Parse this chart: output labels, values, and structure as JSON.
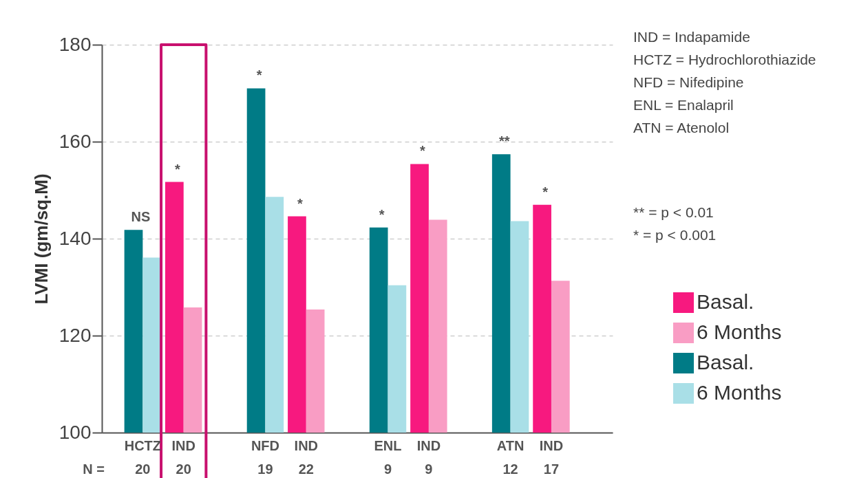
{
  "chart_data": {
    "type": "bar",
    "ylabel": "LVMI (gm/sq.M)",
    "categories": [
      "HCTZ",
      "IND",
      "NFD",
      "IND",
      "ENL",
      "IND",
      "ATN",
      "IND"
    ],
    "series": [
      {
        "name": "Basal.",
        "color": "#f7197f",
        "values": [
          null,
          151.7,
          null,
          144.6,
          null,
          155.4,
          null,
          147.0
        ]
      },
      {
        "name": "6 Months",
        "color": "#f99dc4",
        "values": [
          null,
          125.8,
          null,
          125.4,
          null,
          143.9,
          null,
          131.3
        ]
      },
      {
        "name": "Basal.",
        "color": "#007b86",
        "values": [
          141.8,
          null,
          171.0,
          null,
          142.3,
          null,
          157.4,
          null
        ]
      },
      {
        "name": "6 Months",
        "color": "#a9dfe7",
        "values": [
          136.1,
          null,
          148.6,
          null,
          130.4,
          null,
          143.6,
          null
        ]
      }
    ],
    "ylim": [
      100,
      180
    ],
    "yticks": [
      100,
      120,
      140,
      160,
      180
    ],
    "grid": "y",
    "legend": "right",
    "annotations": [
      "IND   = Indapamide",
      "HCTZ = Hydrochlorothiazide",
      "NFD   = Nifedipine",
      "ENL   = Enalapril",
      "ATN   = Atenolol",
      "** = p < 0.01",
      "  * = p < 0.001",
      "N =",
      "20",
      "20",
      "19",
      "22",
      "9",
      "9",
      "12",
      "17",
      "NS",
      "*",
      "*",
      "*",
      "*",
      "*",
      "**",
      "*"
    ]
  }
}
